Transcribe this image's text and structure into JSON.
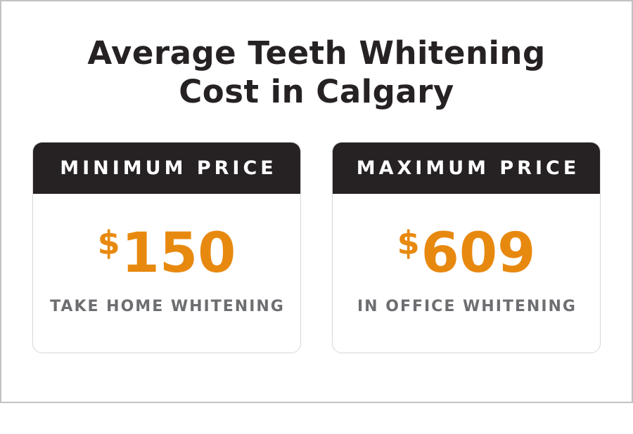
{
  "title": {
    "line1": "Average Teeth Whitening",
    "line2": "Cost in Calgary"
  },
  "cards": [
    {
      "header": "MINIMUM PRICE",
      "currency": "$",
      "amount": "150",
      "label": "TAKE HOME WHITENING"
    },
    {
      "header": "MAXIMUM PRICE",
      "currency": "$",
      "amount": "609",
      "label": "IN OFFICE WHITENING"
    }
  ],
  "colors": {
    "ink": "#262122",
    "accent": "#E8890F",
    "muted": "#6D6E71",
    "card-border": "#D8D8D8",
    "frame-border": "#C2C2C2"
  },
  "chart_data": {
    "type": "table",
    "title": "Average Teeth Whitening Cost in Calgary",
    "categories": [
      "MINIMUM PRICE",
      "MAXIMUM PRICE"
    ],
    "values": [
      150,
      609
    ],
    "currency": "$",
    "value_labels": [
      "$150",
      "$609"
    ],
    "category_sublabels": [
      "TAKE HOME WHITENING",
      "IN OFFICE WHITENING"
    ]
  }
}
